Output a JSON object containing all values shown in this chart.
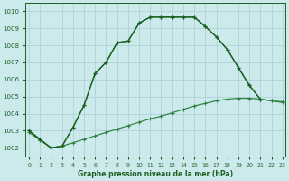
{
  "title": "Graphe pression niveau de la mer (hPa)",
  "bg_color": "#cce9ec",
  "grid_color": "#aacdd2",
  "green_dark": "#1a6020",
  "green_mid": "#2d8040",
  "xlim": [
    -0.3,
    23.3
  ],
  "ylim": [
    1001.5,
    1010.5
  ],
  "xticks": [
    0,
    1,
    2,
    3,
    4,
    5,
    6,
    7,
    8,
    9,
    10,
    11,
    12,
    13,
    14,
    15,
    16,
    17,
    18,
    19,
    20,
    21,
    22,
    23
  ],
  "yticks": [
    1002,
    1003,
    1004,
    1005,
    1006,
    1007,
    1008,
    1009,
    1010
  ],
  "curve1_x": [
    0,
    1,
    2,
    3,
    4,
    5,
    6,
    7,
    8,
    9,
    10,
    11,
    12,
    13,
    14,
    15,
    16,
    17,
    18,
    19,
    20,
    21
  ],
  "curve1_y": [
    1003.0,
    1002.5,
    1002.0,
    1002.1,
    1003.2,
    1004.5,
    1006.35,
    1007.0,
    1008.15,
    1008.25,
    1009.3,
    1009.65,
    1009.65,
    1009.65,
    1009.65,
    1009.65,
    1009.1,
    1008.5,
    1007.75,
    1006.7,
    1005.65,
    1004.85
  ],
  "curve2_x": [
    0,
    1,
    2,
    3,
    4,
    5,
    6,
    7,
    8,
    9,
    10,
    11,
    12,
    13,
    14,
    15,
    16,
    17,
    18,
    19,
    20,
    21,
    22,
    23
  ],
  "curve2_y": [
    1003.0,
    1002.5,
    1002.0,
    1002.1,
    1003.2,
    1004.5,
    1006.35,
    1007.0,
    1008.15,
    1008.25,
    1009.3,
    1009.65,
    1009.65,
    1009.65,
    1009.65,
    1009.65,
    1009.1,
    1008.5,
    1007.75,
    1006.7,
    1005.65,
    1004.85,
    1004.75,
    1004.65
  ],
  "curve3_x": [
    0,
    1,
    2,
    3,
    4,
    5,
    6,
    7,
    8,
    9,
    10,
    11,
    12,
    13,
    14,
    15,
    16,
    17,
    18,
    19,
    20,
    21,
    22,
    23
  ],
  "curve3_y": [
    1002.9,
    1002.45,
    1002.0,
    1002.1,
    1002.3,
    1002.5,
    1002.7,
    1002.9,
    1003.1,
    1003.3,
    1003.5,
    1003.7,
    1003.85,
    1004.05,
    1004.25,
    1004.45,
    1004.6,
    1004.75,
    1004.85,
    1004.9,
    1004.9,
    1004.85,
    1004.75,
    1004.7
  ]
}
